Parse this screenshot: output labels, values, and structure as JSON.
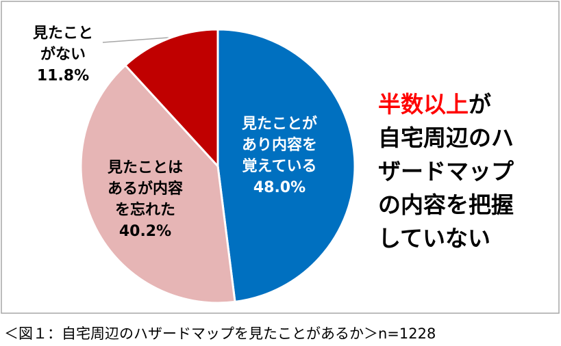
{
  "chart_data": {
    "type": "pie",
    "categories": [
      "見たことが\nあり内容を\n覚えている",
      "見たことは\nあるが内容\nを忘れた",
      "見たこと\nがない"
    ],
    "values": [
      48.0,
      40.2,
      11.8
    ],
    "value_labels": [
      "48.0%",
      "40.2%",
      "11.8%"
    ],
    "colors": [
      "#0070c0",
      "#e6b5b5",
      "#c00000"
    ],
    "annotation_highlight": "半数以上",
    "annotation": "が\n自宅周辺のハ\nザードマップ\nの内容を把握\nしていない",
    "caption": "＜図１：自宅周辺のハザードマップを見たことがあるか＞n=1228"
  }
}
